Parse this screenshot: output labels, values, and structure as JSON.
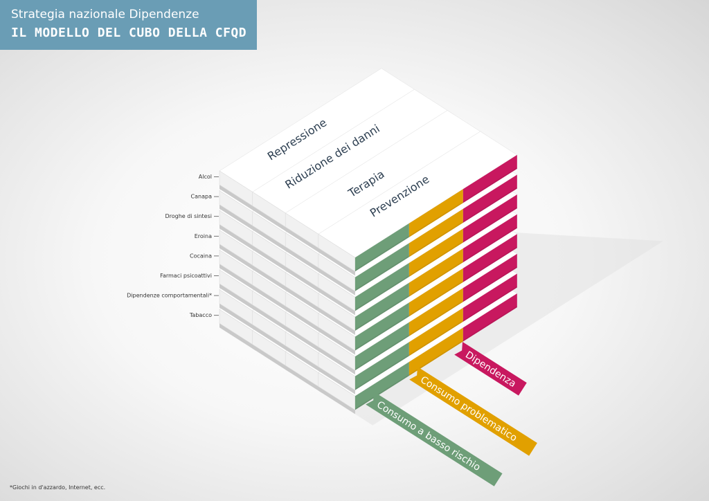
{
  "header": {
    "subtitle": "Strategia nazionale Dipendenze",
    "title": "IL MODELLO DEL CUBO DELLA CFQD"
  },
  "substances": [
    "Alcol",
    "Canapa",
    "Droghe di sintesi",
    "Eroina",
    "Cocaina",
    "Farmaci psicoattivi",
    "Dipendenze comportamentali*",
    "Tabacco"
  ],
  "pillars": [
    "Repressione",
    "Riduzione dei danni",
    "Terapia",
    "Prevenzione"
  ],
  "consumption_levels": [
    {
      "label": "Consumo a basso rischio",
      "color": "#6e9e78"
    },
    {
      "label": "Consumo problematico",
      "color": "#e1a000"
    },
    {
      "label": "Dipendenza",
      "color": "#c8185f"
    }
  ],
  "footnote": "*Giochi in d'azzardo, Internet, ecc."
}
